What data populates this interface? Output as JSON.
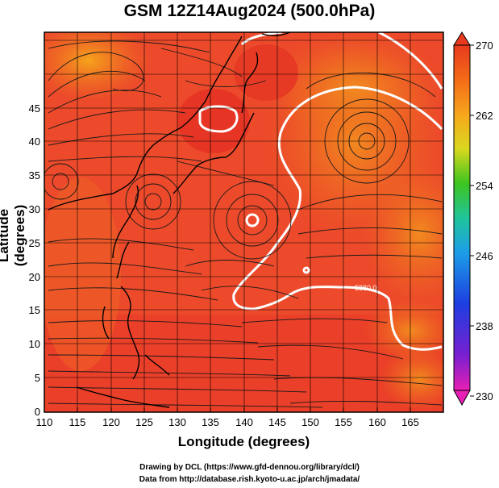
{
  "title": "GSM 12Z14Aug2024 (500.0hPa)",
  "xlabel": "Longitude (degrees)",
  "ylabel": "Latitude (degrees)",
  "credits": [
    "Drawing by DCL (https://www.gfd-dennou.org/library/dcl/)",
    "Data from http://database.rish.kyoto-u.ac.jp/arch/jmadata/"
  ],
  "x_ticks": [
    "110",
    "115",
    "120",
    "125",
    "130",
    "135",
    "140",
    "145",
    "150",
    "155",
    "160",
    "165"
  ],
  "y_ticks": [
    "0",
    "5",
    "10",
    "15",
    "20",
    "25",
    "30",
    "35",
    "40",
    "45"
  ],
  "colorbar": {
    "labels": [
      "270",
      "262",
      "254",
      "246",
      "238",
      "230"
    ],
    "colors": [
      "#e02a1a",
      "#f46b18",
      "#f7a61c",
      "#d9d81f",
      "#3ec41f",
      "#1fc4a0",
      "#1d9ee8",
      "#1d4fe8",
      "#3b1fc4",
      "#b81fd9",
      "#e81fb4"
    ]
  },
  "contour_label": "5880.0"
}
